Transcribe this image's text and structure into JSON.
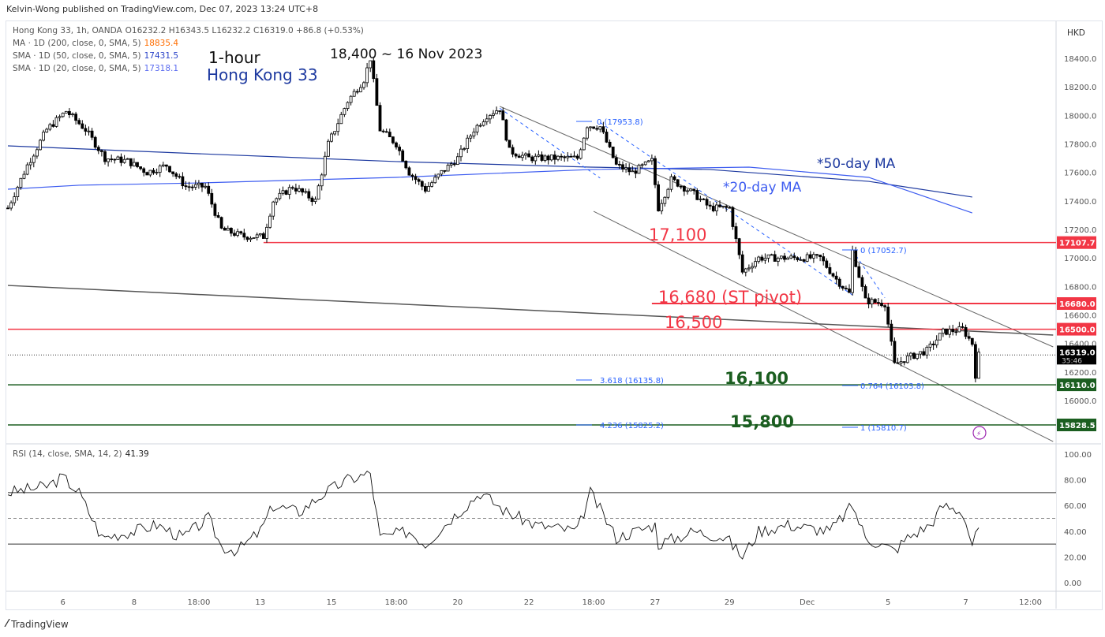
{
  "header": {
    "published": "Kelvin-Wong published on TradingView.com, Dec 07, 2023 13:24 UTC+8",
    "currency": "HKD",
    "logo": "TradingView"
  },
  "legend": {
    "symbol": "Hong Kong 33, 1h, OANDA",
    "ohlc": "O16232.2  H16343.5  L16232.2  C16319.0  +86.8 (+0.53%)",
    "ma200_label": "MA · 1D (200, close, 0, SMA, 5)",
    "ma200_value": "18835.4",
    "sma50_label": "SMA · 1D (50, close, 0, SMA, 5)",
    "sma50_value": "17431.5",
    "sma20_label": "SMA · 1D (20, close, 0, SMA, 5)",
    "sma20_value": "17318.1",
    "rsi_label": "RSI (14, close, SMA, 14, 2)",
    "rsi_value": "41.39"
  },
  "colors": {
    "resistance": "#f23645",
    "support": "#1b5e20",
    "ma50": "#1e3aa0",
    "ma20": "#3d5cf0",
    "fib": "#2962ff",
    "ma200": "#ff6d00"
  },
  "chart_data": [
    {
      "type": "candlestick",
      "title": "Hong Kong 33 1-hour",
      "annotations": {
        "timeframe": "1-hour",
        "name": "Hong Kong 33",
        "peak": "18,400 ~ 16 Nov 2023",
        "ma50": "*50-day MA",
        "ma20": "*20-day MA",
        "lvl_17100": "17,100",
        "lvl_16680": "16,680 (ST pivot)",
        "lvl_16500": "16,500",
        "lvl_16100": "16,100",
        "lvl_15800": "15,800",
        "fib_top1": "0 (17953.8)",
        "fib_a": "3.618 (16135.8)",
        "fib_b": "4.236 (15825.2)",
        "fib_top2": "0 (17052.7)",
        "fib_c": "0.764 (16103.8)",
        "fib_d": "1 (15810.7)"
      },
      "ylim": [
        15700,
        18600
      ],
      "y_ticks": [
        18400,
        18200,
        18000,
        17800,
        17600,
        17400,
        17200,
        17000,
        16800,
        16600,
        16400,
        16200,
        16000
      ],
      "x_ticks": [
        {
          "bar": 17,
          "label": "6"
        },
        {
          "bar": 39,
          "label": "8"
        },
        {
          "bar": 59,
          "label": "18:00"
        },
        {
          "bar": 78,
          "label": "13"
        },
        {
          "bar": 100,
          "label": "15"
        },
        {
          "bar": 120,
          "label": "18:00"
        },
        {
          "bar": 139,
          "label": "20"
        },
        {
          "bar": 161,
          "label": "22"
        },
        {
          "bar": 181,
          "label": "18:00"
        },
        {
          "bar": 200,
          "label": "27"
        },
        {
          "bar": 223,
          "label": "29"
        },
        {
          "bar": 247,
          "label": "Dec"
        },
        {
          "bar": 272,
          "label": "5"
        },
        {
          "bar": 296,
          "label": "7"
        },
        {
          "bar": 316,
          "label": "12:00"
        }
      ],
      "price_path": [
        [
          0,
          17350
        ],
        [
          6,
          17650
        ],
        [
          12,
          17900
        ],
        [
          18,
          18030
        ],
        [
          24,
          17900
        ],
        [
          30,
          17700
        ],
        [
          37,
          17680
        ],
        [
          43,
          17600
        ],
        [
          49,
          17650
        ],
        [
          55,
          17500
        ],
        [
          61,
          17500
        ],
        [
          66,
          17200
        ],
        [
          73,
          17150
        ],
        [
          79,
          17150
        ],
        [
          82,
          17400
        ],
        [
          88,
          17500
        ],
        [
          95,
          17400
        ],
        [
          99,
          17800
        ],
        [
          105,
          18100
        ],
        [
          110,
          18250
        ],
        [
          112,
          18400
        ],
        [
          115,
          17900
        ],
        [
          120,
          17800
        ],
        [
          124,
          17600
        ],
        [
          129,
          17480
        ],
        [
          134,
          17600
        ],
        [
          139,
          17700
        ],
        [
          144,
          17900
        ],
        [
          148,
          18000
        ],
        [
          152,
          18050
        ],
        [
          155,
          17750
        ],
        [
          161,
          17700
        ],
        [
          168,
          17700
        ],
        [
          176,
          17700
        ],
        [
          179,
          17930
        ],
        [
          183,
          17920
        ],
        [
          188,
          17650
        ],
        [
          193,
          17600
        ],
        [
          199,
          17680
        ],
        [
          201,
          17350
        ],
        [
          205,
          17550
        ],
        [
          212,
          17450
        ],
        [
          217,
          17350
        ],
        [
          223,
          17350
        ],
        [
          227,
          16900
        ],
        [
          232,
          17000
        ],
        [
          241,
          17000
        ],
        [
          251,
          17000
        ],
        [
          256,
          16850
        ],
        [
          260,
          16750
        ],
        [
          261,
          17050
        ],
        [
          265,
          16700
        ],
        [
          271,
          16680
        ],
        [
          274,
          16250
        ],
        [
          278,
          16300
        ],
        [
          284,
          16350
        ],
        [
          289,
          16480
        ],
        [
          295,
          16500
        ],
        [
          298,
          16400
        ],
        [
          299,
          16180
        ],
        [
          300,
          16319
        ]
      ],
      "ma50": [
        [
          0,
          17786
        ],
        [
          59,
          17731
        ],
        [
          120,
          17676
        ],
        [
          180,
          17637
        ],
        [
          217,
          17620
        ],
        [
          266,
          17537
        ],
        [
          298,
          17427
        ]
      ],
      "ma20": [
        [
          0,
          17482
        ],
        [
          22,
          17510
        ],
        [
          59,
          17526
        ],
        [
          120,
          17565
        ],
        [
          180,
          17620
        ],
        [
          229,
          17637
        ],
        [
          266,
          17565
        ],
        [
          298,
          17316
        ]
      ],
      "levels": [
        {
          "price": 17107.7,
          "label": "17107.7",
          "kind": "resistance",
          "from_bar": 79
        },
        {
          "price": 16680,
          "label": "16680.0",
          "kind": "resistance",
          "from_bar": 199
        },
        {
          "price": 16500,
          "label": "16500.0",
          "kind": "resistance",
          "from_bar": 0
        },
        {
          "price": 16110,
          "label": "16110.0",
          "kind": "support",
          "from_bar": 0
        },
        {
          "price": 15828.5,
          "label": "15828.5",
          "kind": "support",
          "from_bar": 0
        }
      ],
      "last_price": {
        "value": 16319.0,
        "label": "16319.0",
        "countdown": "35:46"
      },
      "trendlines": [
        {
          "name": "channel-upper",
          "p1": [
            152,
            18063
          ],
          "p2": [
            323,
            16376
          ]
        },
        {
          "name": "channel-lower",
          "p1": [
            181,
            17327
          ],
          "p2": [
            323,
            15712
          ]
        },
        {
          "name": "long-trendline",
          "p1": [
            0,
            16807
          ],
          "p2": [
            323,
            16459
          ]
        }
      ]
    },
    {
      "type": "line",
      "title": "RSI (14)",
      "ylim": [
        0,
        100
      ],
      "y_ticks": [
        100,
        80,
        60,
        40,
        20,
        0
      ],
      "bands": [
        30,
        50,
        70
      ],
      "rsi_path": [
        [
          0,
          70
        ],
        [
          12,
          75
        ],
        [
          17,
          82
        ],
        [
          22,
          70
        ],
        [
          29,
          35
        ],
        [
          39,
          40
        ],
        [
          46,
          45
        ],
        [
          54,
          35
        ],
        [
          62,
          50
        ],
        [
          66,
          28
        ],
        [
          71,
          25
        ],
        [
          78,
          40
        ],
        [
          82,
          60
        ],
        [
          90,
          55
        ],
        [
          98,
          70
        ],
        [
          105,
          80
        ],
        [
          112,
          85
        ],
        [
          115,
          35
        ],
        [
          124,
          40
        ],
        [
          129,
          30
        ],
        [
          137,
          50
        ],
        [
          146,
          70
        ],
        [
          154,
          55
        ],
        [
          163,
          45
        ],
        [
          176,
          40
        ],
        [
          180,
          70
        ],
        [
          188,
          35
        ],
        [
          200,
          45
        ],
        [
          201,
          30
        ],
        [
          212,
          40
        ],
        [
          222,
          35
        ],
        [
          227,
          20
        ],
        [
          232,
          40
        ],
        [
          241,
          45
        ],
        [
          254,
          40
        ],
        [
          261,
          60
        ],
        [
          265,
          35
        ],
        [
          274,
          25
        ],
        [
          278,
          35
        ],
        [
          285,
          45
        ],
        [
          289,
          60
        ],
        [
          295,
          55
        ],
        [
          298,
          30
        ],
        [
          300,
          41
        ]
      ]
    }
  ]
}
